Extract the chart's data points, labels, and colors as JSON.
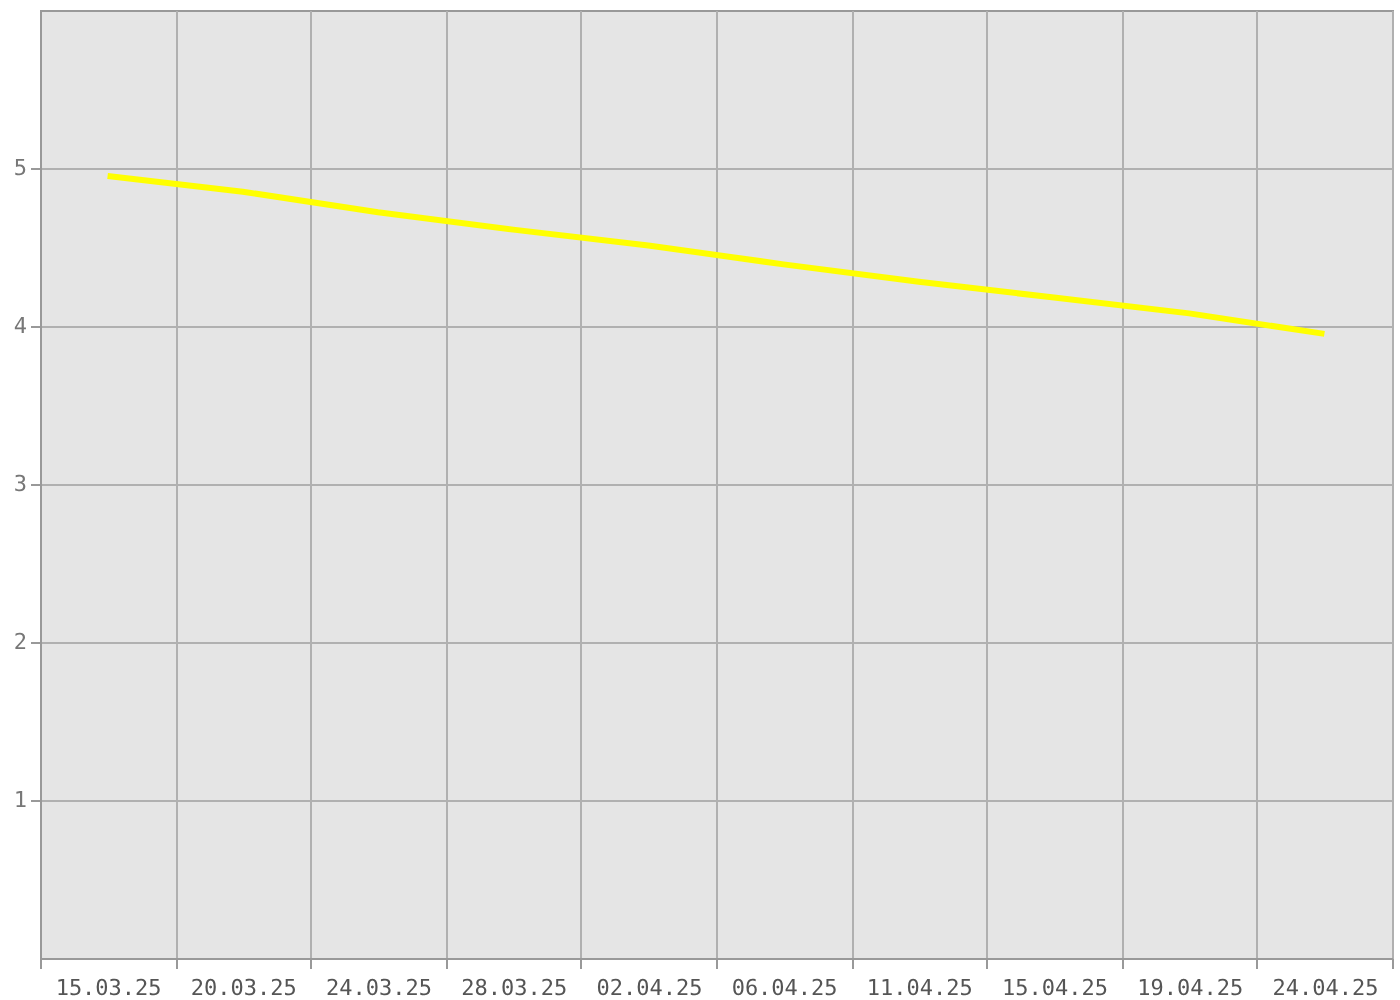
{
  "chart_data": {
    "type": "line",
    "categories": [
      "15.03.25",
      "20.03.25",
      "24.03.25",
      "28.03.25",
      "02.04.25",
      "06.04.25",
      "11.04.25",
      "15.04.25",
      "19.04.25",
      "24.04.25"
    ],
    "series": [
      {
        "color": "#ffff00",
        "values": [
          4.95,
          4.85,
          4.72,
          4.61,
          4.51,
          4.39,
          4.28,
          4.18,
          4.08,
          3.95
        ]
      }
    ],
    "ylim": [
      0,
      6
    ],
    "yticks": [
      1,
      2,
      3,
      4,
      5
    ],
    "grid": true,
    "marker": "none",
    "line_style": "solid"
  }
}
